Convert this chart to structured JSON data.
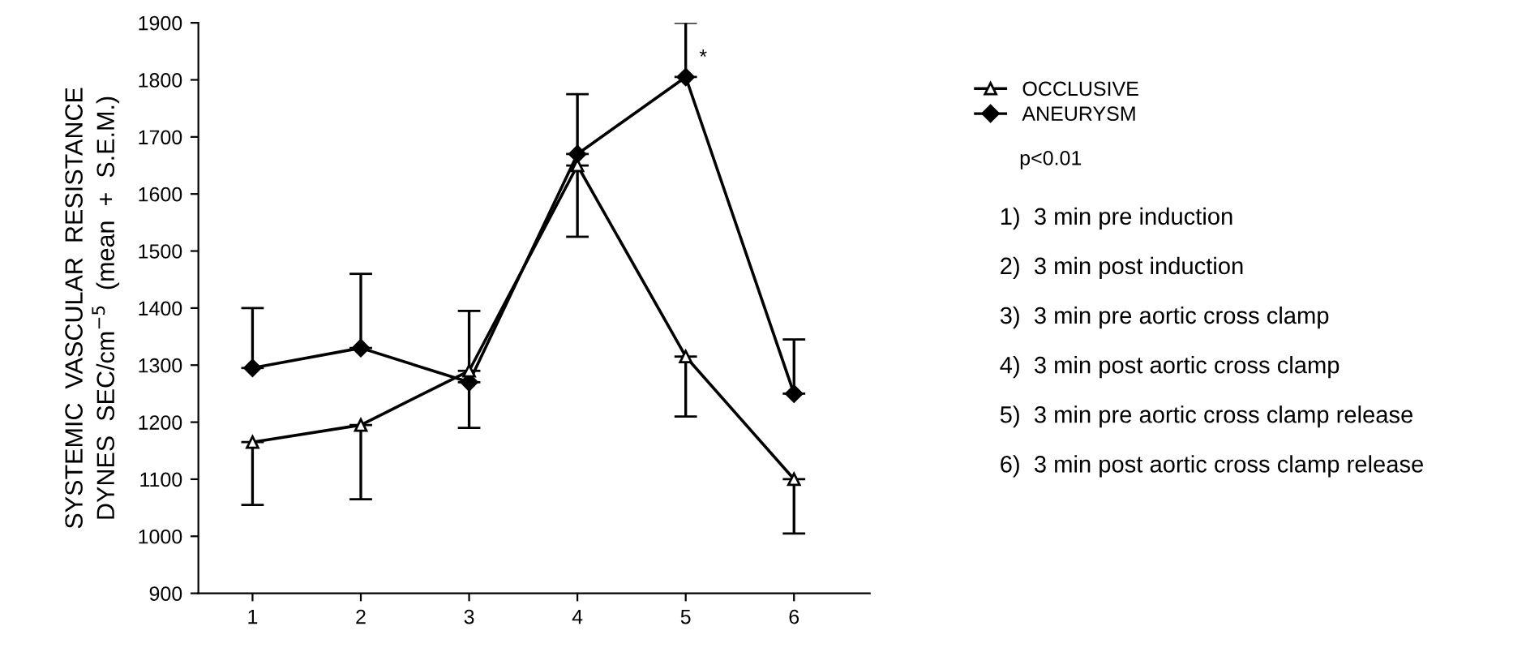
{
  "chart_data": {
    "type": "line",
    "ylabel": "SYSTEMIC  VASCULAR  RESISTANCE\nDYNES  SEC/cm$^{−5}$  (mean  +  S.E.M.)",
    "categories": [
      "1",
      "2",
      "3",
      "4",
      "5",
      "6"
    ],
    "series": [
      {
        "name": "OCCLUSIVE",
        "color": "#000000",
        "marker": "triangle",
        "values": [
          1165,
          1195,
          1290,
          1650,
          1315,
          1100
        ],
        "errors": [
          [
            1055,
            1165
          ],
          [
            1065,
            1195
          ],
          [
            1190,
            1290
          ],
          [
            1525,
            1650
          ],
          [
            1210,
            1315
          ],
          [
            1005,
            1100
          ]
        ]
      },
      {
        "name": "ANEURYSM",
        "color": "#000000",
        "marker": "diamond",
        "values": [
          1295,
          1330,
          1270,
          1670,
          1805,
          1250
        ],
        "errors": [
          [
            1295,
            1400
          ],
          [
            1330,
            1460
          ],
          [
            1270,
            1395
          ],
          [
            1670,
            1775
          ],
          [
            1805,
            1900
          ],
          [
            1250,
            1345
          ]
        ]
      }
    ],
    "ylim": [
      900,
      1900
    ],
    "yticks": [
      900,
      1000,
      1100,
      1200,
      1300,
      1400,
      1500,
      1600,
      1700,
      1800,
      1900
    ],
    "legend": "top right",
    "grid": false,
    "line_style": "solid",
    "annotations": [
      {
        "text": "*",
        "x": "5",
        "y": 1805
      },
      "p<0.01",
      "1)  3 min pre induction",
      "2)  3 min post induction",
      "3)  3 min pre aortic cross clamp",
      "4)  3 min post aortic cross clamp",
      "5)  3 min pre aortic cross clamp release",
      "6)  3 min post aortic cross clamp release"
    ]
  }
}
